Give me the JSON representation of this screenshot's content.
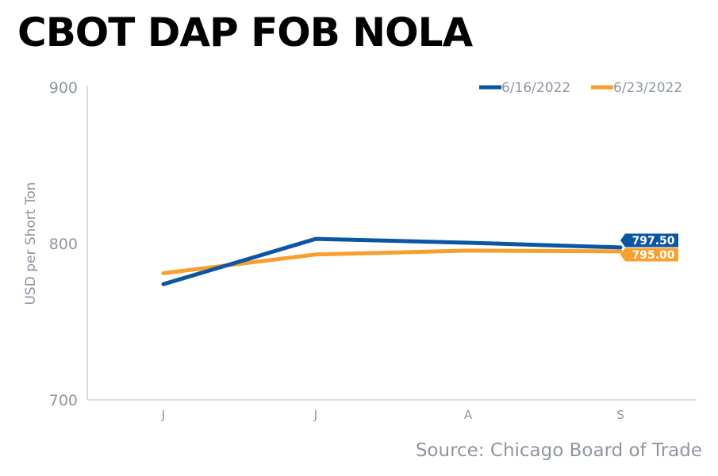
{
  "chart_data": {
    "type": "line",
    "title": "CBOT DAP FOB NOLA",
    "xlabel": "",
    "ylabel": "USD per Short Ton",
    "categories": [
      "J",
      "J",
      "A",
      "S"
    ],
    "ylim": [
      700,
      900
    ],
    "yticks": [
      700,
      800,
      900
    ],
    "grid": false,
    "legend_position": "top-right",
    "series": [
      {
        "name": "6/16/2022",
        "color": "#0b56a4",
        "values": [
          774,
          803,
          800.5,
          797.5
        ],
        "end_label": "797.50"
      },
      {
        "name": "6/23/2022",
        "color": "#f7a02e",
        "values": [
          781,
          793,
          795.5,
          795.0
        ],
        "end_label": "795.00"
      }
    ],
    "source": "Source: Chicago Board of Trade"
  },
  "colors": {
    "axis": "#dcdcdc",
    "text_muted": "#8e96a1",
    "title": "#000000"
  }
}
